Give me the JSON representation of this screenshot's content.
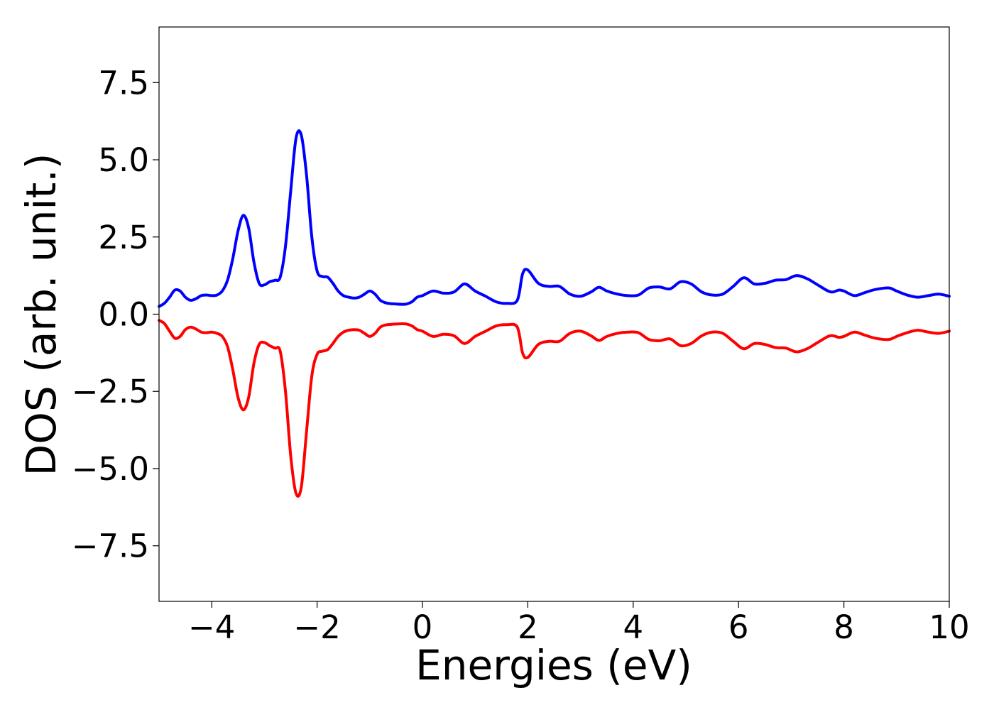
{
  "chart_data": {
    "type": "line",
    "title": "",
    "xlabel": "Energies (eV)",
    "ylabel": "DOS (arb. unit.)",
    "xlim": [
      -5,
      10
    ],
    "ylim": [
      -9.3,
      9.3
    ],
    "grid": false,
    "legend": "none",
    "x_ticks": [
      -4,
      -2,
      0,
      2,
      4,
      6,
      8,
      10
    ],
    "x_tick_labels": [
      "−4",
      "−2",
      "0",
      "2",
      "4",
      "6",
      "8",
      "10"
    ],
    "y_ticks": [
      -7.5,
      -5.0,
      -2.5,
      0.0,
      2.5,
      5.0,
      7.5
    ],
    "y_tick_labels": [
      "−7.5",
      "−5.0",
      "−2.5",
      "0.0",
      "2.5",
      "5.0",
      "7.5"
    ],
    "series": [
      {
        "color": "#0000ff",
        "x": [
          -5.0,
          -4.9,
          -4.8,
          -4.7,
          -4.6,
          -4.5,
          -4.4,
          -4.3,
          -4.2,
          -4.1,
          -4.0,
          -3.9,
          -3.8,
          -3.7,
          -3.6,
          -3.5,
          -3.4,
          -3.3,
          -3.2,
          -3.1,
          -3.0,
          -2.9,
          -2.8,
          -2.7,
          -2.6,
          -2.5,
          -2.4,
          -2.3,
          -2.2,
          -2.1,
          -2.0,
          -1.9,
          -1.8,
          -1.7,
          -1.6,
          -1.5,
          -1.4,
          -1.3,
          -1.2,
          -1.1,
          -1.0,
          -0.9,
          -0.8,
          -0.7,
          -0.6,
          -0.5,
          -0.4,
          -0.3,
          -0.2,
          -0.1,
          0.0,
          0.2,
          0.4,
          0.6,
          0.8,
          1.0,
          1.2,
          1.4,
          1.6,
          1.8,
          1.9,
          2.0,
          2.2,
          2.4,
          2.6,
          2.8,
          3.0,
          3.2,
          3.35,
          3.5,
          3.7,
          3.9,
          4.1,
          4.3,
          4.5,
          4.7,
          4.9,
          5.1,
          5.3,
          5.5,
          5.7,
          5.9,
          6.1,
          6.3,
          6.5,
          6.7,
          6.9,
          7.1,
          7.3,
          7.5,
          7.7,
          7.8,
          7.9,
          8.0,
          8.2,
          8.4,
          8.6,
          8.85,
          9.0,
          9.2,
          9.4,
          9.6,
          9.8,
          10.0
        ],
        "y": [
          0.25,
          0.35,
          0.55,
          0.78,
          0.75,
          0.55,
          0.45,
          0.5,
          0.6,
          0.62,
          0.6,
          0.62,
          0.75,
          1.1,
          1.8,
          2.7,
          3.2,
          2.8,
          1.7,
          1.0,
          0.95,
          1.05,
          1.1,
          1.2,
          2.2,
          4.0,
          5.7,
          5.8,
          4.5,
          2.5,
          1.4,
          1.22,
          1.2,
          1.0,
          0.75,
          0.6,
          0.55,
          0.52,
          0.55,
          0.65,
          0.75,
          0.65,
          0.45,
          0.37,
          0.34,
          0.33,
          0.32,
          0.33,
          0.4,
          0.55,
          0.6,
          0.75,
          0.68,
          0.72,
          0.98,
          0.75,
          0.58,
          0.4,
          0.35,
          0.45,
          1.3,
          1.43,
          1.0,
          0.9,
          0.9,
          0.65,
          0.58,
          0.72,
          0.87,
          0.75,
          0.65,
          0.6,
          0.62,
          0.85,
          0.88,
          0.82,
          1.05,
          0.98,
          0.72,
          0.62,
          0.65,
          0.9,
          1.18,
          0.98,
          1.0,
          1.1,
          1.12,
          1.25,
          1.15,
          0.95,
          0.75,
          0.72,
          0.78,
          0.75,
          0.6,
          0.7,
          0.8,
          0.85,
          0.75,
          0.62,
          0.55,
          0.6,
          0.65,
          0.58
        ]
      },
      {
        "color": "#ff0000",
        "x": [
          -5.0,
          -4.9,
          -4.8,
          -4.7,
          -4.6,
          -4.5,
          -4.4,
          -4.3,
          -4.2,
          -4.1,
          -4.0,
          -3.9,
          -3.8,
          -3.7,
          -3.6,
          -3.5,
          -3.4,
          -3.3,
          -3.2,
          -3.1,
          -3.0,
          -2.9,
          -2.8,
          -2.7,
          -2.6,
          -2.5,
          -2.4,
          -2.3,
          -2.2,
          -2.1,
          -2.0,
          -1.9,
          -1.8,
          -1.7,
          -1.6,
          -1.5,
          -1.4,
          -1.3,
          -1.2,
          -1.1,
          -1.0,
          -0.9,
          -0.8,
          -0.7,
          -0.6,
          -0.5,
          -0.4,
          -0.3,
          -0.2,
          -0.1,
          0.0,
          0.2,
          0.4,
          0.6,
          0.8,
          1.0,
          1.2,
          1.4,
          1.6,
          1.8,
          1.9,
          2.0,
          2.2,
          2.4,
          2.6,
          2.8,
          3.0,
          3.2,
          3.35,
          3.5,
          3.7,
          3.9,
          4.1,
          4.3,
          4.5,
          4.7,
          4.9,
          5.1,
          5.3,
          5.5,
          5.7,
          5.9,
          6.1,
          6.3,
          6.5,
          6.7,
          6.9,
          7.1,
          7.3,
          7.5,
          7.7,
          7.8,
          7.9,
          8.0,
          8.2,
          8.4,
          8.6,
          8.85,
          9.0,
          9.2,
          9.4,
          9.6,
          9.8,
          10.0
        ],
        "y": [
          -0.2,
          -0.3,
          -0.55,
          -0.78,
          -0.72,
          -0.5,
          -0.42,
          -0.48,
          -0.58,
          -0.6,
          -0.58,
          -0.62,
          -0.72,
          -1.05,
          -1.8,
          -2.7,
          -3.1,
          -2.7,
          -1.6,
          -0.98,
          -0.92,
          -1.02,
          -1.1,
          -1.2,
          -2.5,
          -4.6,
          -5.8,
          -5.6,
          -3.8,
          -2.0,
          -1.3,
          -1.2,
          -1.15,
          -0.95,
          -0.72,
          -0.58,
          -0.52,
          -0.5,
          -0.52,
          -0.62,
          -0.72,
          -0.62,
          -0.42,
          -0.35,
          -0.33,
          -0.32,
          -0.31,
          -0.32,
          -0.38,
          -0.5,
          -0.55,
          -0.72,
          -0.65,
          -0.7,
          -0.95,
          -0.72,
          -0.55,
          -0.38,
          -0.34,
          -0.42,
          -1.25,
          -1.4,
          -0.98,
          -0.88,
          -0.88,
          -0.62,
          -0.55,
          -0.7,
          -0.85,
          -0.72,
          -0.62,
          -0.58,
          -0.6,
          -0.82,
          -0.86,
          -0.8,
          -1.02,
          -0.95,
          -0.7,
          -0.58,
          -0.62,
          -0.88,
          -1.12,
          -0.95,
          -0.98,
          -1.08,
          -1.1,
          -1.22,
          -1.12,
          -0.92,
          -0.72,
          -0.7,
          -0.75,
          -0.72,
          -0.58,
          -0.68,
          -0.78,
          -0.82,
          -0.72,
          -0.6,
          -0.52,
          -0.58,
          -0.62,
          -0.55
        ]
      }
    ]
  }
}
